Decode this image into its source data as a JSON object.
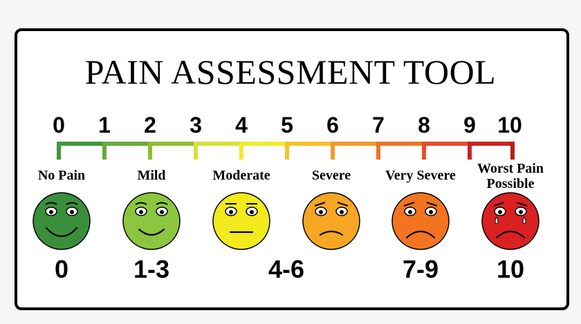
{
  "title": "PAIN ASSESSMENT TOOL",
  "scale": {
    "numbers": [
      "0",
      "1",
      "2",
      "3",
      "4",
      "5",
      "6",
      "7",
      "8",
      "9",
      "10"
    ],
    "colors": [
      "#3e9a3c",
      "#68ab3a",
      "#8fbe30",
      "#d5e23a",
      "#f2ea2e",
      "#f7c12c",
      "#f29a2a",
      "#ea7626",
      "#e2502a",
      "#cc2222",
      "#bb1b1b"
    ]
  },
  "levels": [
    {
      "label": "No Pain",
      "range": "0",
      "face_color": "#3a8f3c",
      "expression": "big-smile",
      "icon": "happy-face-icon"
    },
    {
      "label": "Mild",
      "range": "1-3",
      "face_color": "#8cc63f",
      "expression": "smile",
      "icon": "slight-smile-face-icon"
    },
    {
      "label": "Moderate",
      "range": "4-6",
      "face_color": "#f2ea1c",
      "expression": "neutral",
      "icon": "neutral-face-icon"
    },
    {
      "label": "Severe",
      "range": "",
      "face_color": "#f5a623",
      "expression": "frown",
      "icon": "frown-face-icon"
    },
    {
      "label": "Very Severe",
      "range": "7-9",
      "face_color": "#f27421",
      "expression": "sad",
      "icon": "sad-face-icon"
    },
    {
      "label_line1": "Worst Pain",
      "label_line2": "Possible",
      "range": "10",
      "face_color": "#d92121",
      "expression": "crying",
      "icon": "crying-face-icon"
    }
  ]
}
